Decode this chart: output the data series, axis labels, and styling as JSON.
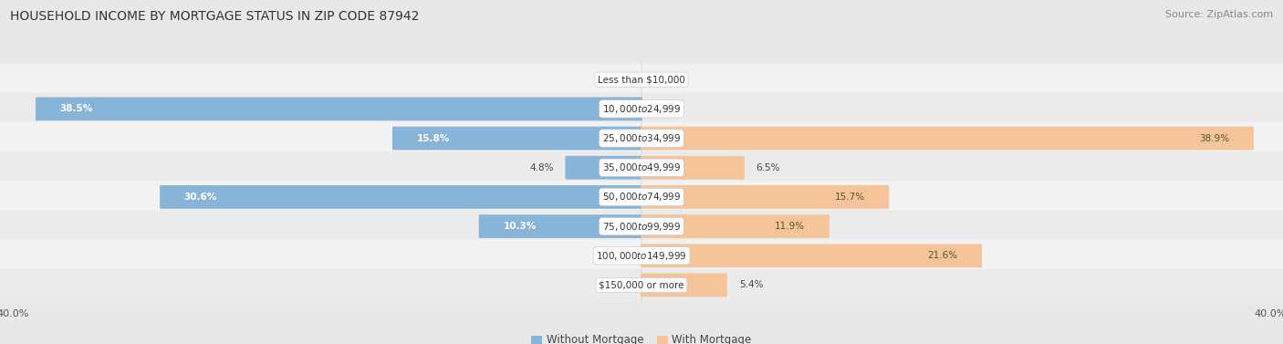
{
  "title": "HOUSEHOLD INCOME BY MORTGAGE STATUS IN ZIP CODE 87942",
  "source": "Source: ZipAtlas.com",
  "categories": [
    "Less than $10,000",
    "$10,000 to $24,999",
    "$25,000 to $34,999",
    "$35,000 to $49,999",
    "$50,000 to $74,999",
    "$75,000 to $99,999",
    "$100,000 to $149,999",
    "$150,000 or more"
  ],
  "without_mortgage": [
    0.0,
    38.5,
    15.8,
    4.8,
    30.6,
    10.3,
    0.0,
    0.0
  ],
  "with_mortgage": [
    0.0,
    0.0,
    38.9,
    6.5,
    15.7,
    11.9,
    21.6,
    5.4
  ],
  "color_without": "#88b4d8",
  "color_with": "#f5c498",
  "axis_max": 40.0,
  "bg_color": "#e8e8e8",
  "row_bg_color": "#f2f2f2",
  "title_fontsize": 10,
  "source_fontsize": 8,
  "label_fontsize": 7.5,
  "category_fontsize": 7.5,
  "legend_fontsize": 8.5,
  "axis_label_fontsize": 8
}
